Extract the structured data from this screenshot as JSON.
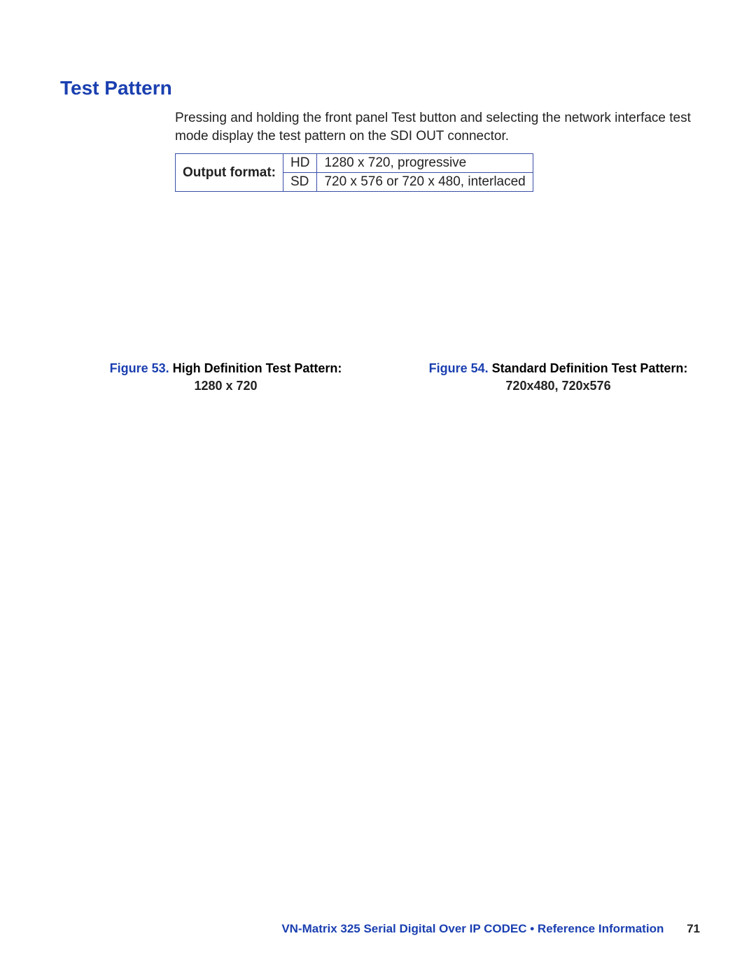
{
  "colors": {
    "accent_blue": "#1a3fb0",
    "body_text": "#222222",
    "border_blue": "#3a4ea8",
    "background": "#ffffff"
  },
  "heading": "Test Pattern",
  "intro_paragraph": "Pressing and holding the front panel Test button and selecting the network interface test mode display the test pattern on the SDI OUT connector.",
  "output_format_table": {
    "header_label": "Output format",
    "header_label_suffix": ":",
    "rows": [
      {
        "mode": "HD",
        "desc": "1280 x 720, progressive"
      },
      {
        "mode": "SD",
        "desc": "720 x 576 or 720 x 480, interlaced"
      }
    ]
  },
  "captions": {
    "left": {
      "fig_label": "Figure 53.",
      "title": " High Definition Test Pattern:",
      "line2": "1280 x 720"
    },
    "right": {
      "fig_label": "Figure 54.",
      "title": " Standard Definition Test Pattern:",
      "line2": "720x480, 720x576"
    }
  },
  "footer": {
    "doc_title": "VN-Matrix 325 Serial Digital Over IP CODEC • Reference Information",
    "page_number": "71"
  }
}
